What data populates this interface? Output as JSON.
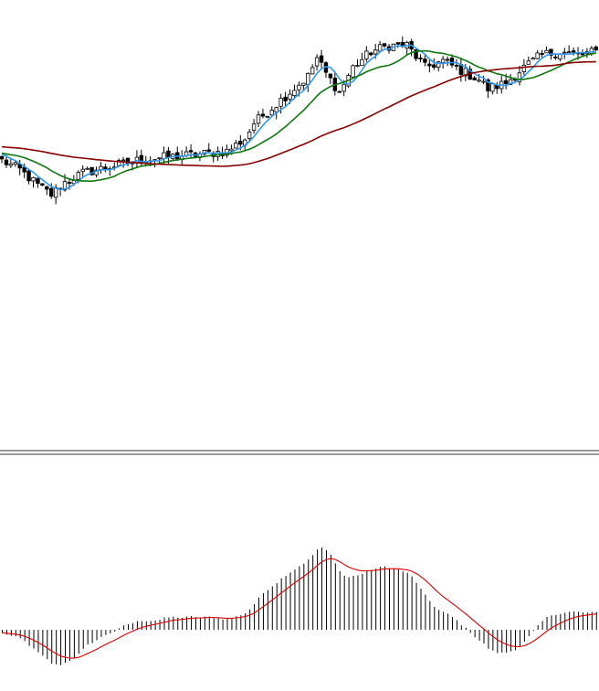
{
  "colors": {
    "background": "#ffffff",
    "candle": "#000000",
    "ma_fast": "#3399ee",
    "ma_mid": "#117711",
    "ma_slow": "#880000",
    "histogram": "#000000",
    "signal": "#dd0000",
    "separator": "#333333"
  },
  "chart_data": [
    {
      "type": "candlestick",
      "title": "",
      "xlabel": "",
      "ylabel": "",
      "grid": false,
      "ylim": [
        0,
        100
      ],
      "n_bars": 133,
      "close_anchors": [
        [
          0,
          66
        ],
        [
          4,
          63
        ],
        [
          8,
          58
        ],
        [
          11,
          55
        ],
        [
          14,
          59
        ],
        [
          18,
          62
        ],
        [
          24,
          64
        ],
        [
          30,
          66
        ],
        [
          36,
          67
        ],
        [
          44,
          68
        ],
        [
          50,
          69
        ],
        [
          54,
          73
        ],
        [
          56,
          78
        ],
        [
          60,
          83
        ],
        [
          64,
          88
        ],
        [
          68,
          93
        ],
        [
          70,
          99
        ],
        [
          72,
          94
        ],
        [
          75,
          88
        ],
        [
          78,
          96
        ],
        [
          82,
          101
        ],
        [
          86,
          103
        ],
        [
          90,
          103
        ],
        [
          94,
          96
        ],
        [
          98,
          98
        ],
        [
          102,
          95
        ],
        [
          106,
          92
        ],
        [
          108,
          89
        ],
        [
          112,
          91
        ],
        [
          116,
          96
        ],
        [
          120,
          100
        ],
        [
          124,
          101
        ],
        [
          128,
          100
        ],
        [
          132,
          101
        ]
      ],
      "series": [
        {
          "name": "",
          "kind": "moving-average",
          "period": 5,
          "color": "#3399ee"
        },
        {
          "name": "",
          "kind": "moving-average",
          "period": 15,
          "color": "#117711"
        },
        {
          "name": "",
          "kind": "moving-average",
          "period": 50,
          "color": "#880000"
        }
      ]
    },
    {
      "type": "bar",
      "title": "",
      "xlabel": "",
      "ylabel": "",
      "grid": false,
      "ylim": [
        -8,
        22
      ],
      "baseline": 0,
      "series": [
        {
          "name": "",
          "kind": "histogram",
          "color": "#000000"
        },
        {
          "name": "",
          "kind": "signal-line",
          "color": "#dd0000"
        }
      ]
    }
  ]
}
